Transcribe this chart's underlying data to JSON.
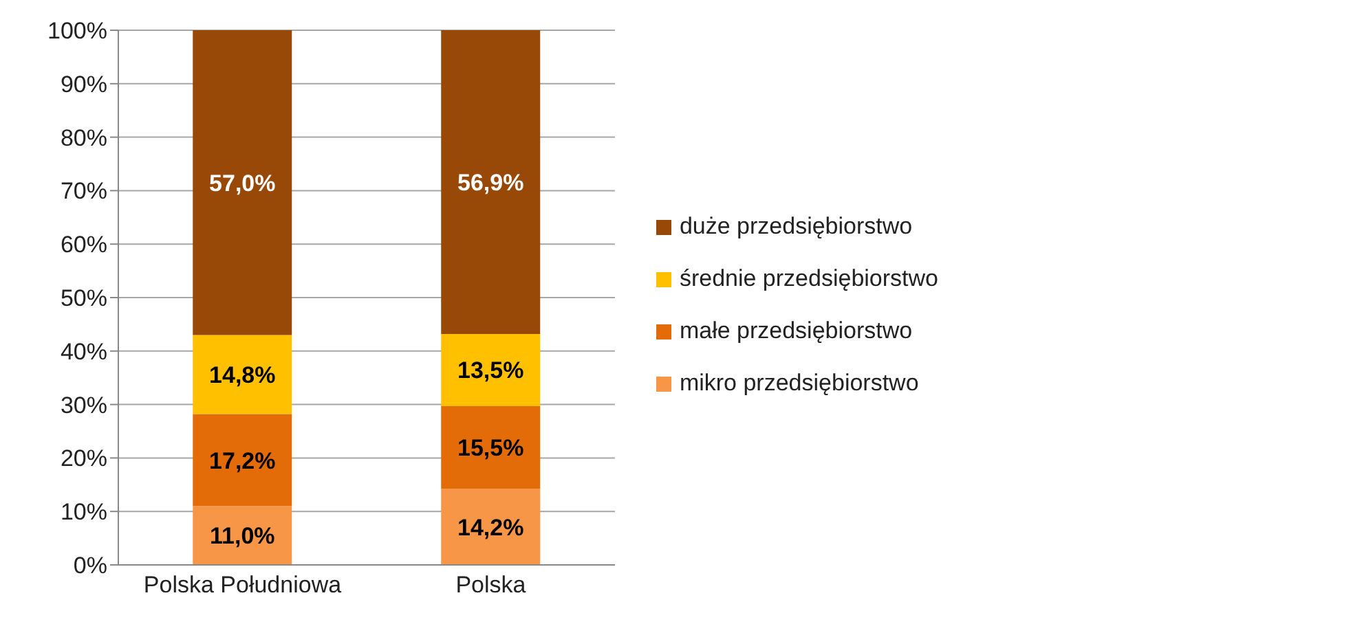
{
  "chart_data": {
    "type": "bar",
    "stacked": true,
    "categories": [
      "Polska Południowa",
      "Polska"
    ],
    "series": [
      {
        "name": "mikro przedsiębiorstwo",
        "color": "#f79646",
        "values": [
          11.0,
          14.2
        ],
        "value_labels": [
          "11,0%",
          "14,2%"
        ]
      },
      {
        "name": "małe przedsiębiorstwo",
        "color": "#e36c09",
        "values": [
          17.2,
          15.5
        ],
        "value_labels": [
          "17,2%",
          "15,5%"
        ]
      },
      {
        "name": "średnie przedsiębiorstwo",
        "color": "#ffc000",
        "values": [
          14.8,
          13.5
        ],
        "value_labels": [
          "14,8%",
          "13,5%"
        ]
      },
      {
        "name": "duże przedsiębiorstwo",
        "color": "#984807",
        "values": [
          57.0,
          56.9
        ],
        "value_labels": [
          "57,0%",
          "56,9%"
        ]
      }
    ],
    "ylim": [
      0,
      100
    ],
    "yticks": [
      {
        "value": 0,
        "label": "0%"
      },
      {
        "value": 10,
        "label": "10%"
      },
      {
        "value": 20,
        "label": "20%"
      },
      {
        "value": 30,
        "label": "30%"
      },
      {
        "value": 40,
        "label": "40%"
      },
      {
        "value": 50,
        "label": "50%"
      },
      {
        "value": 60,
        "label": "60%"
      },
      {
        "value": 70,
        "label": "70%"
      },
      {
        "value": 80,
        "label": "80%"
      },
      {
        "value": 90,
        "label": "90%"
      },
      {
        "value": 100,
        "label": "100%"
      }
    ],
    "grid": "y",
    "legend": "right"
  }
}
